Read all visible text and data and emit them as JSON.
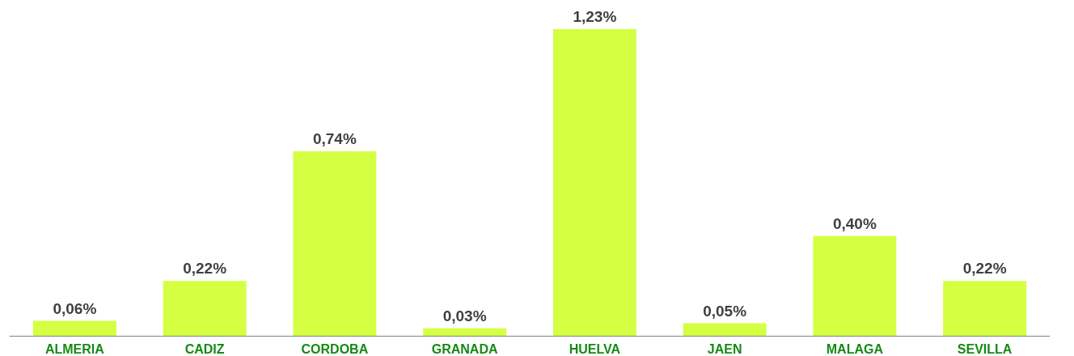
{
  "chart_data": {
    "type": "bar",
    "categories": [
      "ALMERIA",
      "CADIZ",
      "CORDOBA",
      "GRANADA",
      "HUELVA",
      "JAEN",
      "MALAGA",
      "SEVILLA"
    ],
    "values": [
      0.06,
      0.22,
      0.74,
      0.03,
      1.23,
      0.05,
      0.4,
      0.22
    ],
    "value_labels": [
      "0,06%",
      "0,22%",
      "0,74%",
      "0,03%",
      "1,23%",
      "0,05%",
      "0,40%",
      "0,22%"
    ],
    "color": "#d4ff42"
  }
}
